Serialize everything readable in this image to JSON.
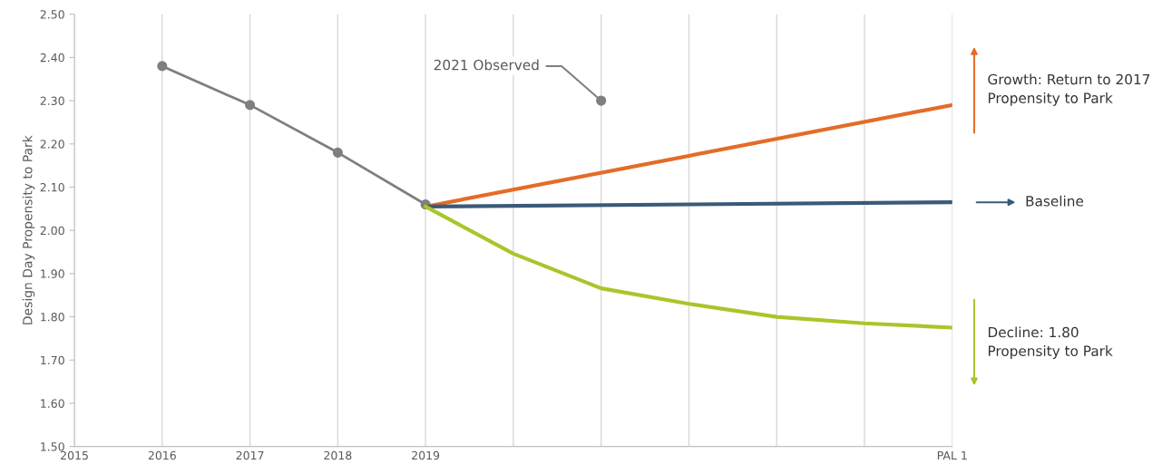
{
  "chart_data": {
    "type": "line",
    "ylabel": "Design Day Propensity to Park",
    "categories": [
      "2015",
      "2016",
      "2017",
      "2018",
      "2019",
      null,
      null,
      null,
      null,
      null,
      "PAL 1"
    ],
    "series": [
      {
        "color": "#7f7f7f",
        "marker": "circle",
        "values": [
          null,
          2.38,
          2.29,
          2.18,
          2.06,
          null,
          null,
          null,
          null,
          null,
          null
        ]
      },
      {
        "name": "2021 Observed",
        "type": "scatter",
        "color": "#7f7f7f",
        "marker": "circle",
        "values": [
          null,
          null,
          null,
          null,
          null,
          null,
          2.3,
          null,
          null,
          null,
          null
        ]
      },
      {
        "name": "Growth: Return to 2017\nPropensity to Park",
        "color": "#e46c28",
        "values": [
          null,
          null,
          null,
          null,
          2.055,
          null,
          null,
          null,
          null,
          null,
          2.29
        ]
      },
      {
        "name": "Baseline",
        "color": "#3a5a78",
        "values": [
          null,
          null,
          null,
          null,
          2.055,
          null,
          null,
          null,
          null,
          null,
          2.065
        ]
      },
      {
        "name": "Decline: 1.80\nPropensity to Park",
        "color": "#a8c62c",
        "values": [
          null,
          null,
          null,
          null,
          2.055,
          1.946,
          1.866,
          1.83,
          1.8,
          1.785,
          1.775
        ]
      }
    ],
    "ylim": [
      1.5,
      2.5
    ],
    "yticks": [
      {
        "value": 1.5,
        "label": "1.50"
      },
      {
        "value": 1.6,
        "label": "1.60"
      },
      {
        "value": 1.7,
        "label": "1.70"
      },
      {
        "value": 1.8,
        "label": "1.80"
      },
      {
        "value": 1.9,
        "label": "1.90"
      },
      {
        "value": 2.0,
        "label": "2.00"
      },
      {
        "value": 2.1,
        "label": "2.10"
      },
      {
        "value": 2.2,
        "label": "2.20"
      },
      {
        "value": 2.3,
        "label": "2.30"
      },
      {
        "value": 2.4,
        "label": "2.40"
      },
      {
        "value": 2.5,
        "label": "2.50"
      }
    ],
    "grid": "x",
    "line_style": "solid"
  }
}
